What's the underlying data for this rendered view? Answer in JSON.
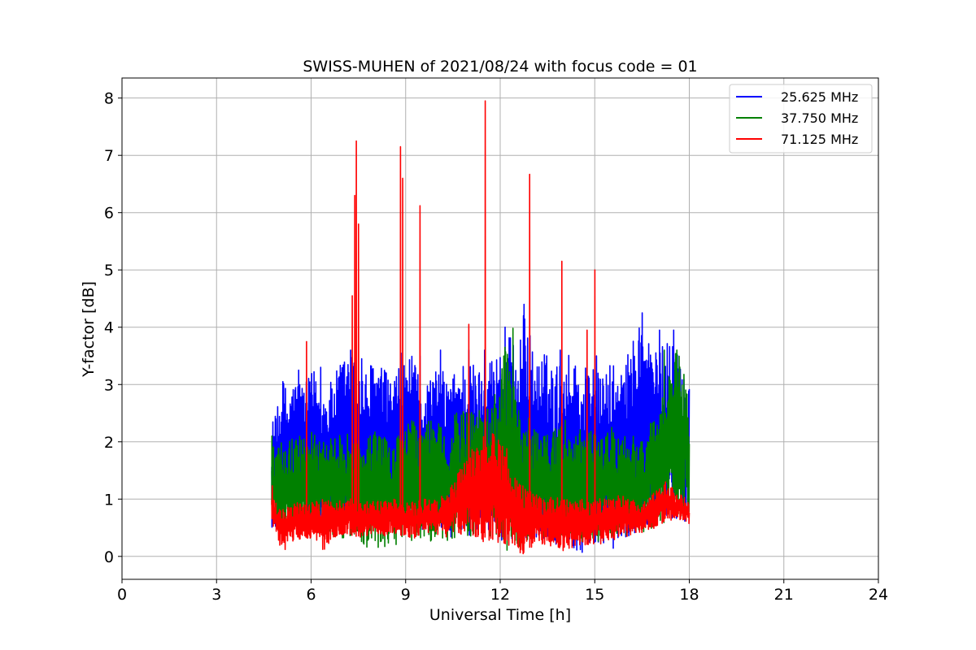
{
  "chart_data": {
    "type": "line",
    "title": "SWISS-MUHEN of 2021/08/24 with focus code = 01",
    "xlabel": "Universal Time [h]",
    "ylabel": "Y-factor [dB]",
    "xlim": [
      0,
      24
    ],
    "ylim": [
      -0.4,
      8.35
    ],
    "x_ticks": [
      0,
      3,
      6,
      9,
      12,
      15,
      18,
      21,
      24
    ],
    "y_ticks": [
      0,
      1,
      2,
      3,
      4,
      5,
      6,
      7,
      8
    ],
    "grid": true,
    "legend_position": "top-right",
    "series": [
      {
        "name": "25.625 MHz",
        "color": "#0000ff",
        "x": [
          4.75,
          4.9,
          5.1,
          5.3,
          5.55,
          5.8,
          6.1,
          6.4,
          6.7,
          7.0,
          7.2,
          7.45,
          7.7,
          8.0,
          8.3,
          8.6,
          8.9,
          9.2,
          9.5,
          9.8,
          10.1,
          10.4,
          10.7,
          11.0,
          11.3,
          11.6,
          11.9,
          12.2,
          12.5,
          12.8,
          13.1,
          13.4,
          13.7,
          14.0,
          14.3,
          14.6,
          14.9,
          15.2,
          15.5,
          15.8,
          16.1,
          16.4,
          16.7,
          17.0,
          17.3,
          17.6,
          17.9,
          18.0
        ],
        "y_high": [
          2.4,
          2.5,
          3.1,
          2.9,
          3.2,
          3.0,
          3.3,
          2.9,
          3.1,
          3.5,
          3.6,
          3.4,
          3.2,
          3.5,
          3.3,
          3.1,
          3.4,
          3.5,
          3.0,
          3.2,
          3.3,
          3.1,
          3.4,
          3.5,
          3.3,
          3.5,
          3.6,
          4.0,
          3.6,
          4.4,
          3.4,
          3.6,
          3.3,
          3.5,
          3.6,
          3.3,
          3.5,
          3.1,
          3.4,
          3.2,
          3.6,
          4.2,
          3.9,
          3.5,
          3.9,
          3.7,
          3.3,
          3.2
        ],
        "y_low": [
          0.5,
          0.45,
          0.4,
          0.5,
          0.45,
          0.55,
          0.5,
          0.45,
          0.5,
          0.4,
          0.45,
          0.5,
          0.55,
          0.45,
          0.5,
          0.5,
          0.45,
          0.5,
          0.45,
          0.35,
          0.4,
          0.3,
          0.4,
          0.35,
          0.3,
          0.4,
          0.25,
          0.3,
          0.25,
          0.3,
          0.25,
          0.3,
          0.2,
          0.25,
          0.15,
          0.0,
          0.2,
          0.25,
          0.0,
          0.3,
          0.35,
          0.45,
          0.5,
          0.6,
          0.55,
          0.65,
          0.6,
          0.7
        ],
        "spikes": [
          [
            4.88,
            2.4
          ],
          [
            5.1,
            3.05
          ],
          [
            5.6,
            3.25
          ],
          [
            6.3,
            3.3
          ],
          [
            7.25,
            3.6
          ],
          [
            7.6,
            3.45
          ],
          [
            8.85,
            3.55
          ],
          [
            9.45,
            3.5
          ],
          [
            10.1,
            3.6
          ],
          [
            11.0,
            3.6
          ],
          [
            11.5,
            3.6
          ],
          [
            12.15,
            4.0
          ],
          [
            12.75,
            4.4
          ],
          [
            13.9,
            3.6
          ],
          [
            15.05,
            3.5
          ],
          [
            16.5,
            4.25
          ],
          [
            17.05,
            3.95
          ],
          [
            17.5,
            3.95
          ]
        ]
      },
      {
        "name": "37.750 MHz",
        "color": "#008000",
        "x": [
          4.75,
          4.9,
          5.1,
          5.3,
          5.55,
          5.8,
          6.1,
          6.4,
          6.7,
          7.0,
          7.2,
          7.45,
          7.7,
          8.0,
          8.3,
          8.6,
          8.9,
          9.2,
          9.5,
          9.8,
          10.1,
          10.4,
          10.7,
          11.0,
          11.3,
          11.6,
          11.9,
          12.2,
          12.5,
          12.8,
          13.1,
          13.4,
          13.7,
          14.0,
          14.3,
          14.6,
          14.9,
          15.2,
          15.5,
          15.8,
          16.1,
          16.4,
          16.7,
          17.0,
          17.3,
          17.6,
          17.9,
          18.0
        ],
        "y_high": [
          2.1,
          1.8,
          2.1,
          2.0,
          2.2,
          2.1,
          2.2,
          2.0,
          2.1,
          2.3,
          2.2,
          2.1,
          2.0,
          2.2,
          2.1,
          2.0,
          2.2,
          2.4,
          2.2,
          2.5,
          2.3,
          2.4,
          2.6,
          2.5,
          2.8,
          2.6,
          3.0,
          3.9,
          2.7,
          2.5,
          2.4,
          2.3,
          2.2,
          2.4,
          2.3,
          2.2,
          2.2,
          2.1,
          2.3,
          2.0,
          2.2,
          2.0,
          2.3,
          2.5,
          3.6,
          3.6,
          3.2,
          2.0
        ],
        "y_low": [
          0.6,
          0.5,
          0.4,
          0.45,
          0.4,
          0.45,
          0.35,
          0.4,
          0.35,
          0.3,
          0.35,
          0.2,
          0.15,
          0.1,
          0.15,
          0.1,
          0.2,
          0.25,
          0.2,
          0.25,
          0.15,
          0.2,
          0.25,
          0.3,
          0.35,
          0.3,
          0.2,
          0.0,
          0.15,
          0.2,
          0.25,
          0.3,
          0.25,
          0.3,
          0.2,
          0.25,
          0.3,
          0.25,
          0.3,
          0.3,
          0.35,
          0.4,
          0.45,
          0.5,
          0.6,
          0.65,
          0.7,
          0.75
        ],
        "spikes": [
          [
            4.75,
            2.1
          ],
          [
            12.4,
            3.98
          ],
          [
            17.2,
            3.6
          ],
          [
            17.6,
            3.6
          ]
        ]
      },
      {
        "name": "71.125 MHz",
        "color": "#ff0000",
        "x": [
          4.75,
          4.9,
          5.1,
          5.3,
          5.55,
          5.8,
          6.1,
          6.4,
          6.7,
          7.0,
          7.2,
          7.45,
          7.7,
          8.0,
          8.3,
          8.6,
          8.9,
          9.2,
          9.5,
          9.8,
          10.1,
          10.4,
          10.7,
          11.0,
          11.3,
          11.6,
          11.9,
          12.2,
          12.5,
          12.8,
          13.1,
          13.4,
          13.7,
          14.0,
          14.3,
          14.6,
          14.9,
          15.2,
          15.5,
          15.8,
          16.1,
          16.4,
          16.7,
          17.0,
          17.3,
          17.6,
          17.9,
          18.0
        ],
        "y_high": [
          1.3,
          0.9,
          0.85,
          0.9,
          0.95,
          0.9,
          0.95,
          1.0,
          0.95,
          1.0,
          1.05,
          1.0,
          0.95,
          1.0,
          0.95,
          1.0,
          1.0,
          0.95,
          1.0,
          1.0,
          1.05,
          1.2,
          1.5,
          1.8,
          2.0,
          2.2,
          2.1,
          2.0,
          1.4,
          1.2,
          1.1,
          1.0,
          1.05,
          1.0,
          1.0,
          1.0,
          1.05,
          1.0,
          1.0,
          1.1,
          1.0,
          0.95,
          1.0,
          1.2,
          1.35,
          1.1,
          1.05,
          0.9
        ],
        "y_low": [
          0.45,
          0.3,
          0.05,
          0.2,
          0.3,
          0.25,
          0.3,
          0.1,
          0.3,
          0.35,
          0.4,
          0.3,
          0.35,
          0.4,
          0.35,
          0.4,
          0.35,
          0.3,
          0.35,
          0.4,
          0.35,
          0.3,
          0.35,
          0.3,
          0.25,
          0.2,
          0.25,
          0.15,
          0.1,
          0.0,
          0.2,
          0.15,
          0.2,
          0.1,
          0.15,
          0.15,
          0.2,
          0.2,
          0.25,
          0.3,
          0.35,
          0.4,
          0.45,
          0.5,
          0.6,
          0.65,
          0.6,
          0.55
        ],
        "spikes": [
          [
            5.85,
            3.75
          ],
          [
            7.3,
            4.55
          ],
          [
            7.38,
            6.3
          ],
          [
            7.43,
            7.25
          ],
          [
            7.5,
            5.8
          ],
          [
            8.83,
            7.15
          ],
          [
            8.9,
            6.6
          ],
          [
            9.45,
            6.12
          ],
          [
            11.0,
            4.05
          ],
          [
            11.52,
            7.95
          ],
          [
            12.93,
            6.67
          ],
          [
            13.95,
            5.15
          ],
          [
            14.75,
            3.95
          ],
          [
            15.0,
            5.0
          ]
        ]
      }
    ]
  }
}
